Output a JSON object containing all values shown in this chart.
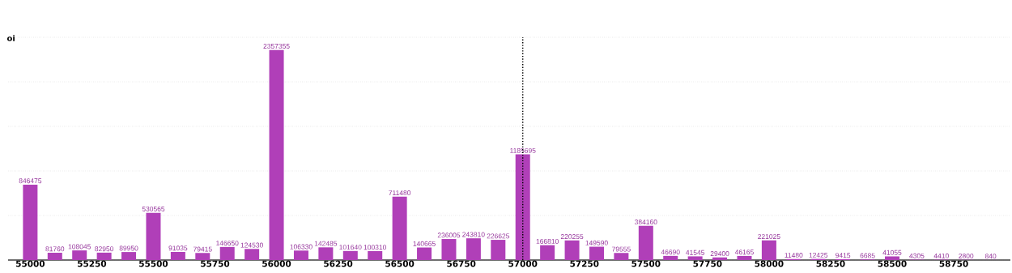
{
  "chart_data": {
    "type": "bar",
    "ylabel": "oi",
    "x": [
      55000,
      55100,
      55200,
      55300,
      55400,
      55500,
      55600,
      55700,
      55800,
      55900,
      56000,
      56100,
      56200,
      56300,
      56400,
      56500,
      56600,
      56700,
      56800,
      56900,
      57000,
      57100,
      57200,
      57300,
      57400,
      57500,
      57600,
      57700,
      57800,
      57900,
      58000,
      58100,
      58200,
      58300,
      58400,
      58500,
      58600,
      58700,
      58800,
      58900
    ],
    "values": [
      846475,
      81760,
      108045,
      82950,
      89950,
      530565,
      91035,
      79415,
      146650,
      124530,
      2357355,
      106330,
      142485,
      101640,
      100310,
      711480,
      140665,
      236005,
      243810,
      226625,
      1185695,
      166810,
      220255,
      149590,
      79555,
      384160,
      46690,
      41545,
      29400,
      46165,
      221025,
      11480,
      12425,
      9415,
      6685,
      41055,
      4305,
      4410,
      2800,
      840
    ],
    "color": "#b03fb8",
    "value_labels": [
      "846475",
      "81760",
      "108045",
      "82950",
      "89950",
      "530565",
      "91035",
      "79415",
      "146650",
      "124530",
      "2357355",
      "106330",
      "142485",
      "101640",
      "100310",
      "711480",
      "140665",
      "236005",
      "243810",
      "226625",
      "1185695",
      "166810",
      "220255",
      "149590",
      "79555",
      "384160",
      "46690",
      "41545",
      "29400",
      "46165",
      "221025",
      "11480",
      "12425",
      "9415",
      "6685",
      "41055",
      "4305",
      "4410",
      "2800",
      "840"
    ],
    "xlim": [
      54910,
      58980
    ],
    "xticks": [
      55000,
      55250,
      55500,
      55750,
      56000,
      56250,
      56500,
      56750,
      57000,
      57250,
      57500,
      57750,
      58000,
      58250,
      58500,
      58750
    ],
    "ylim": [
      0,
      2500000
    ],
    "tick_labels": "x",
    "grid": "y",
    "ref_lines": [
      {
        "axis": "x",
        "value": 57000,
        "color": "#000000",
        "line_style": "dotted"
      }
    ]
  }
}
